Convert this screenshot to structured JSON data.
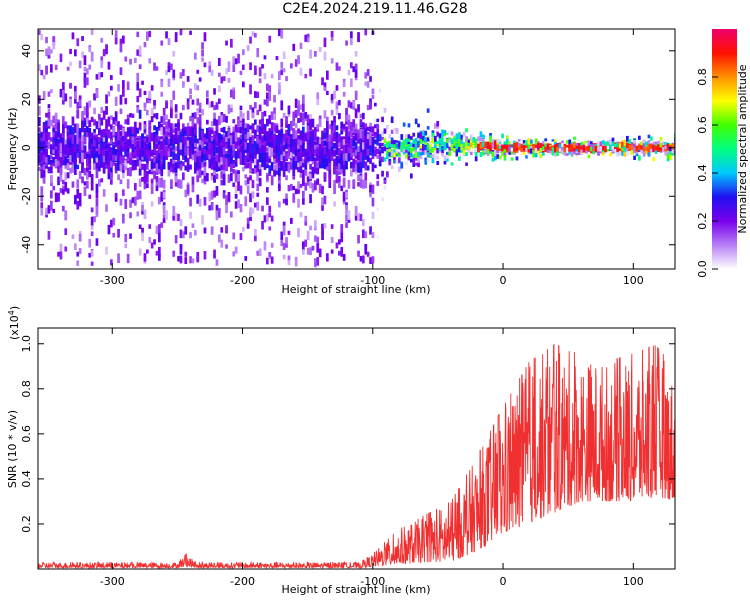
{
  "title": "C2E4.2024.219.11.46.G28",
  "chart_data": [
    {
      "type": "heatmap",
      "xlabel": "Height of straight line (km)",
      "ylabel": "Frequency (Hz)",
      "xlim": [
        -357,
        132
      ],
      "ylim": [
        -50,
        49
      ],
      "xticks": [
        -300,
        -200,
        -100,
        0,
        100
      ],
      "yticks": [
        -40,
        -20,
        0,
        20,
        40
      ],
      "grid": false,
      "colorbar": {
        "label": "Normalized spectral amplitude",
        "ticks": [
          0.0,
          0.2,
          0.4,
          0.6,
          0.8
        ],
        "range": [
          0,
          1
        ],
        "colors": [
          "#ffffff",
          "#b77ff5",
          "#7a00ee",
          "#1f10f0",
          "#00c8ff",
          "#00ff80",
          "#40ff00",
          "#ffff00",
          "#ff9000",
          "#ff1000",
          "#f0006c"
        ]
      },
      "profile": [
        {
          "x": -357,
          "center": 0,
          "core_half": 8,
          "spread": 48,
          "amp": 0.3
        },
        {
          "x": -100,
          "center": 0,
          "core_half": 8,
          "spread": 48,
          "amp": 0.3
        },
        {
          "x": -90,
          "center": -1,
          "core_half": 4,
          "spread": 10,
          "amp": 0.45
        },
        {
          "x": -50,
          "center": 2,
          "core_half": 4,
          "spread": 7,
          "amp": 0.55
        },
        {
          "x": -20,
          "center": 1,
          "core_half": 2,
          "spread": 3,
          "amp": 0.8
        },
        {
          "x": 0,
          "center": 0,
          "core_half": 1.5,
          "spread": 2.5,
          "amp": 0.9
        },
        {
          "x": 132,
          "center": 0,
          "core_half": 1.5,
          "spread": 2.5,
          "amp": 0.95
        }
      ]
    },
    {
      "type": "line",
      "xlabel": "Height of straight line (km)",
      "ylabel": "SNR (10 * v/v)",
      "yscale_label": "(x10",
      "yscale_exp": "4",
      "yscale_close": ")",
      "xlim": [
        -357,
        132
      ],
      "ylim": [
        0,
        1.07
      ],
      "xticks": [
        -300,
        -200,
        -100,
        0,
        100
      ],
      "yticks": [
        0.2,
        0.4,
        0.6,
        0.8,
        1.0
      ],
      "color": "#f03030",
      "grid": false,
      "envelope": {
        "x": [
          -357,
          -250,
          -243,
          -236,
          -110,
          -100,
          -80,
          -60,
          -40,
          -20,
          0,
          20,
          40,
          60,
          80,
          100,
          120,
          132
        ],
        "min": [
          0.005,
          0.005,
          0.01,
          0.005,
          0.005,
          0.01,
          0.02,
          0.03,
          0.03,
          0.08,
          0.15,
          0.2,
          0.25,
          0.3,
          0.3,
          0.3,
          0.32,
          0.3
        ],
        "max": [
          0.03,
          0.03,
          0.07,
          0.03,
          0.03,
          0.07,
          0.18,
          0.24,
          0.3,
          0.5,
          0.72,
          0.92,
          1.0,
          0.95,
          0.92,
          0.96,
          1.0,
          0.82
        ]
      }
    }
  ]
}
